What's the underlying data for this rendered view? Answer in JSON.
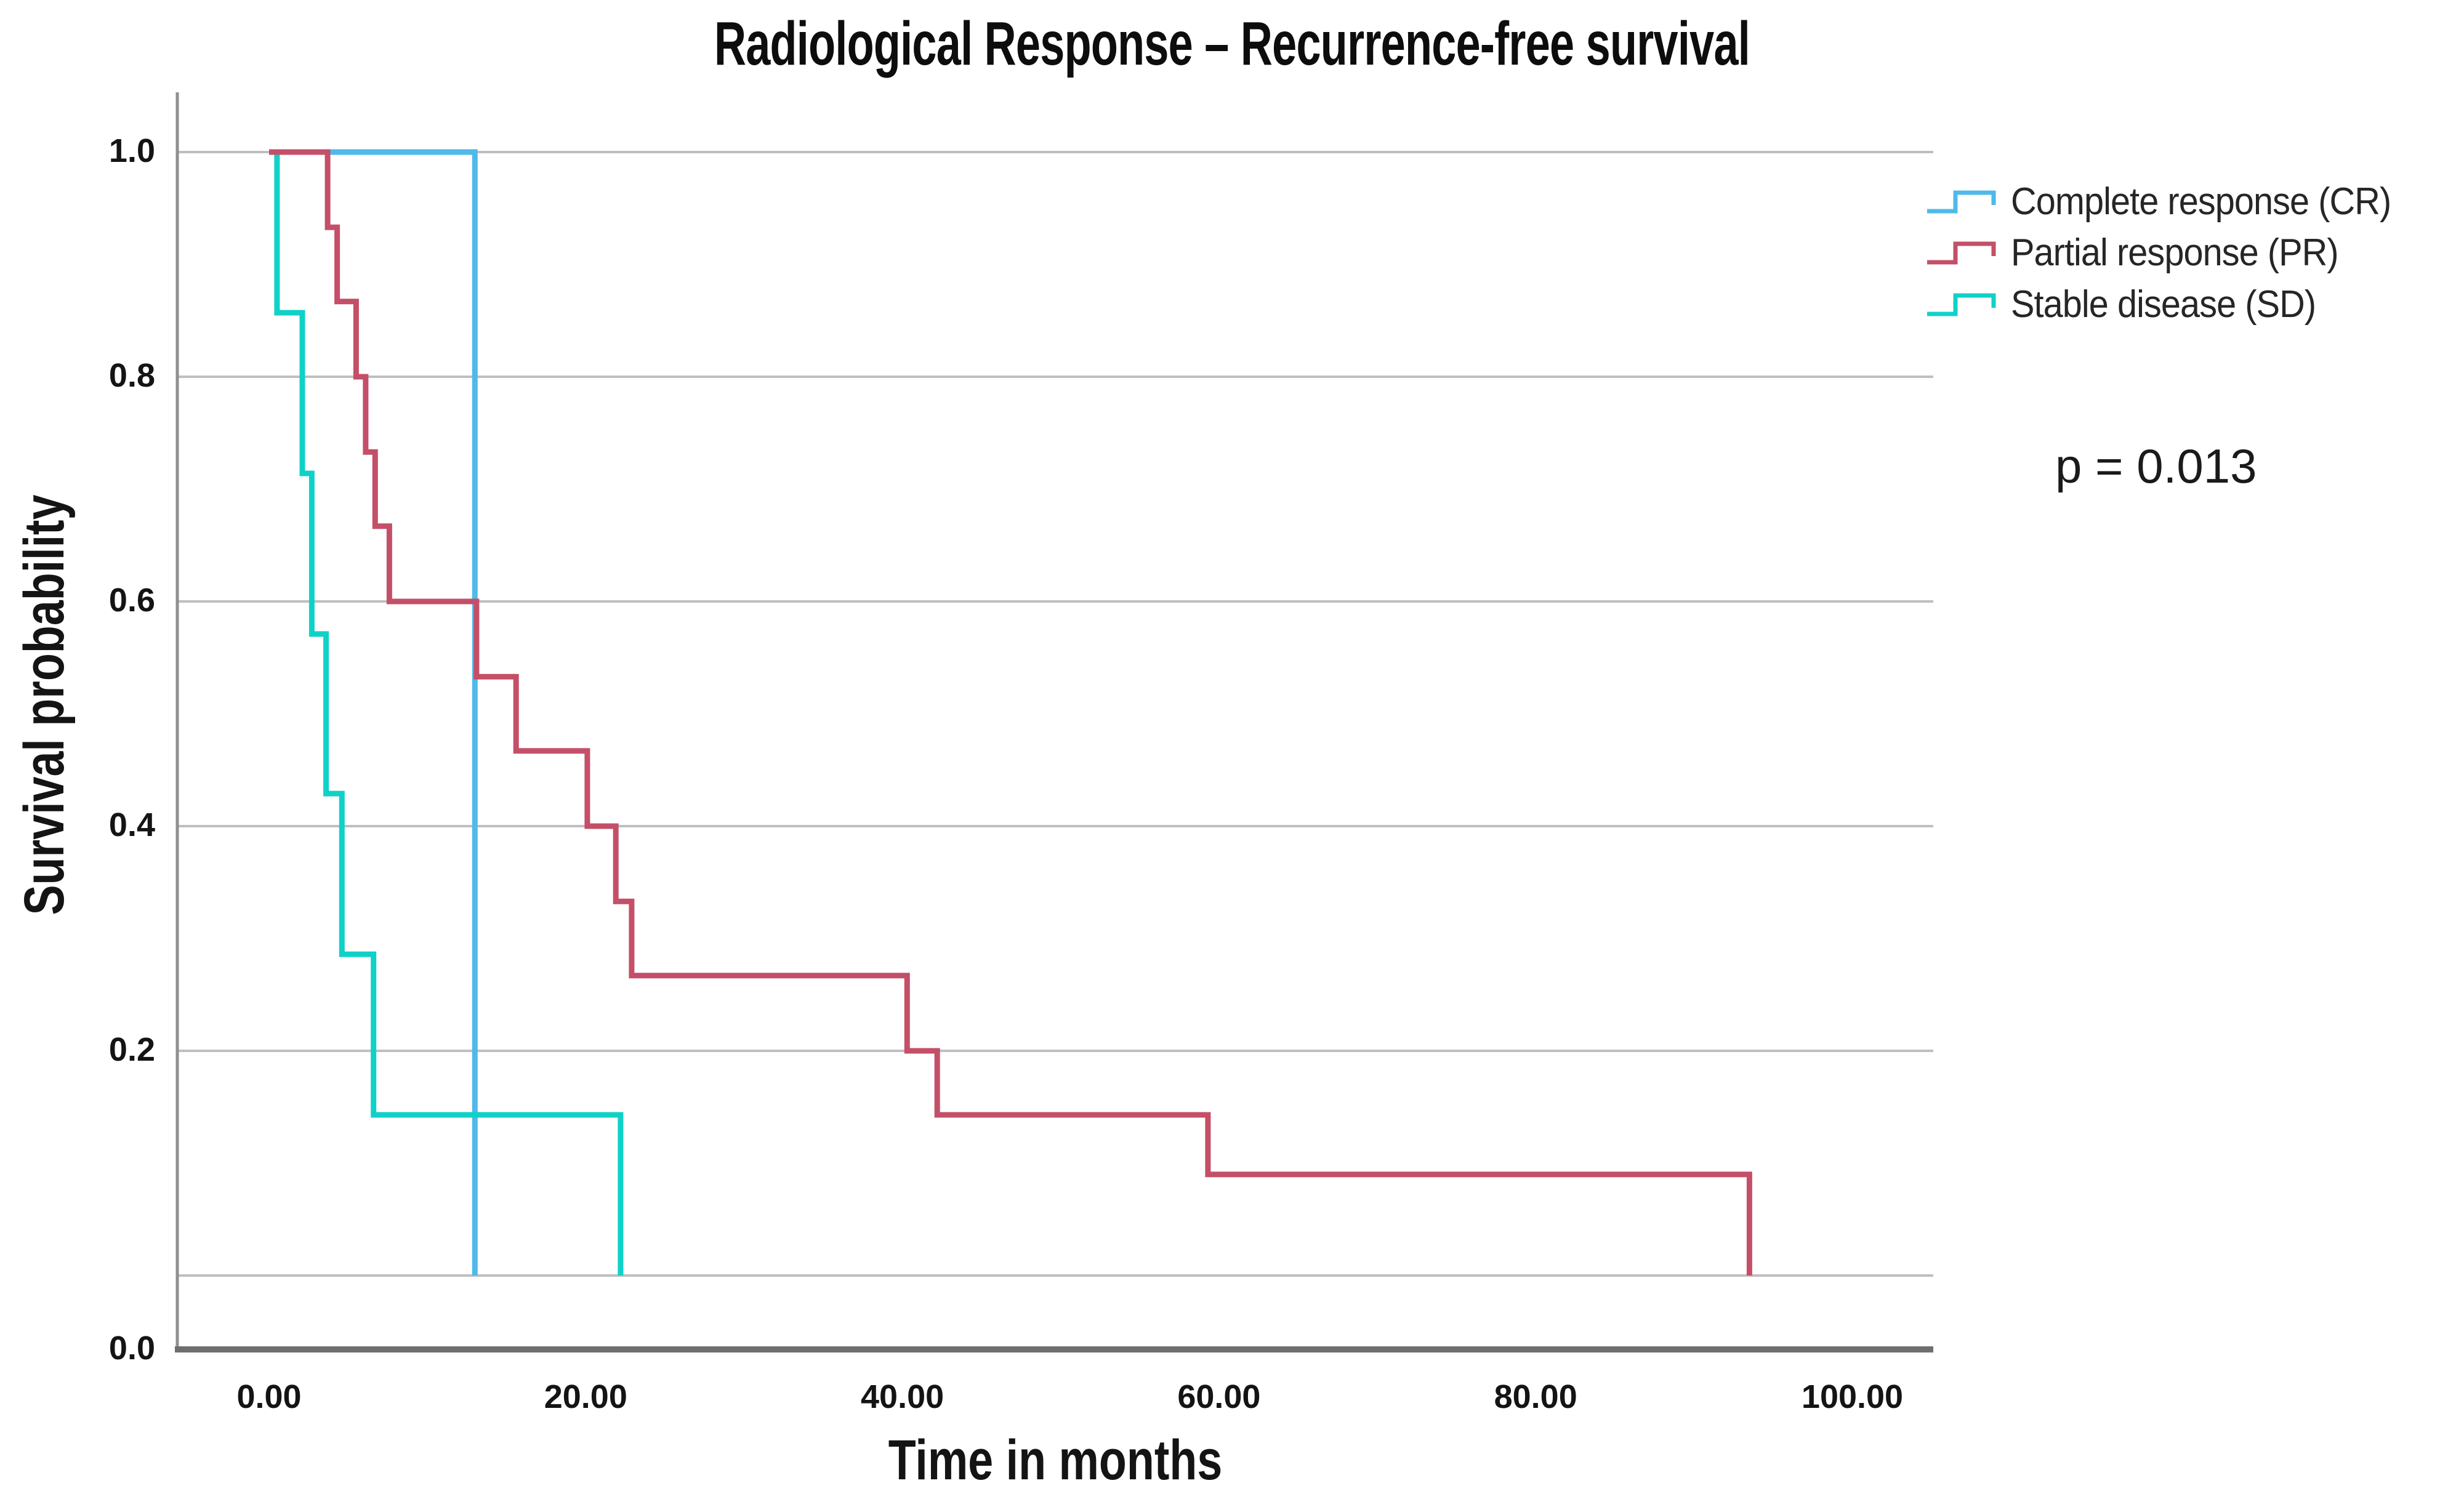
{
  "title": "Radiological Response – Recurrence-free survival",
  "annotation": {
    "p_value": "p = 0.013"
  },
  "axes": {
    "x_label": "Time in months",
    "y_label": "Survival probability",
    "x_tick_labels": [
      "0.00",
      "20.00",
      "40.00",
      "60.00",
      "80.00",
      "100.00"
    ],
    "y_tick_labels": [
      "0.0",
      "0.2",
      "0.4",
      "0.6",
      "0.8",
      "1.0"
    ]
  },
  "legend": [
    {
      "label": "Complete response (CR)",
      "color": "#4FB9EA"
    },
    {
      "label": "Partial response (PR)",
      "color": "#C44F68"
    },
    {
      "label": "Stable disease (SD)",
      "color": "#10D1C8"
    }
  ],
  "chart_data": {
    "type": "line",
    "subtype": "kaplan_meier_step",
    "title": "Radiological Response – Recurrence-free survival",
    "xlabel": "Time in months",
    "ylabel": "Survival probability",
    "xlim": [
      -5.8,
      105.1
    ],
    "ylim": [
      0,
      1
    ],
    "grid": true,
    "legend_position": "right-top",
    "x_ticks": [
      0,
      20,
      40,
      60,
      80,
      100
    ],
    "y_ticks": [
      0.0,
      0.2,
      0.4,
      0.6,
      0.8,
      1.0
    ],
    "p_value": 0.013,
    "series": [
      {
        "name": "Complete response (CR)",
        "color": "#4FB9EA",
        "points": [
          [
            0,
            1
          ],
          [
            13,
            1
          ],
          [
            13,
            0
          ]
        ]
      },
      {
        "name": "Stable disease (SD)",
        "color": "#10D1C8",
        "points": [
          [
            0,
            1
          ],
          [
            0.5,
            1
          ],
          [
            0.5,
            0.857
          ],
          [
            2.1,
            0.857
          ],
          [
            2.1,
            0.714
          ],
          [
            2.7,
            0.714
          ],
          [
            2.7,
            0.571
          ],
          [
            3.6,
            0.571
          ],
          [
            3.6,
            0.429
          ],
          [
            4.6,
            0.429
          ],
          [
            4.6,
            0.286
          ],
          [
            6.6,
            0.286
          ],
          [
            6.6,
            0.143
          ],
          [
            22.2,
            0.143
          ],
          [
            22.2,
            0
          ]
        ]
      },
      {
        "name": "Partial response (PR)",
        "color": "#C44F68",
        "points": [
          [
            0,
            1
          ],
          [
            3.7,
            1
          ],
          [
            3.7,
            0.933
          ],
          [
            4.3,
            0.933
          ],
          [
            4.3,
            0.867
          ],
          [
            5.5,
            0.867
          ],
          [
            5.5,
            0.8
          ],
          [
            6.1,
            0.8
          ],
          [
            6.1,
            0.733
          ],
          [
            6.7,
            0.733
          ],
          [
            6.7,
            0.667
          ],
          [
            7.6,
            0.667
          ],
          [
            7.6,
            0.6
          ],
          [
            13.1,
            0.6
          ],
          [
            13.1,
            0.533
          ],
          [
            15.6,
            0.533
          ],
          [
            15.6,
            0.467
          ],
          [
            20.1,
            0.467
          ],
          [
            20.1,
            0.4
          ],
          [
            21.9,
            0.4
          ],
          [
            21.9,
            0.333
          ],
          [
            22.9,
            0.333
          ],
          [
            22.9,
            0.267
          ],
          [
            40.3,
            0.267
          ],
          [
            40.3,
            0.2
          ],
          [
            42.2,
            0.2
          ],
          [
            42.2,
            0.143
          ],
          [
            59.3,
            0.143
          ],
          [
            59.3,
            0.09
          ],
          [
            93.5,
            0.09
          ],
          [
            93.5,
            0
          ]
        ]
      }
    ]
  }
}
